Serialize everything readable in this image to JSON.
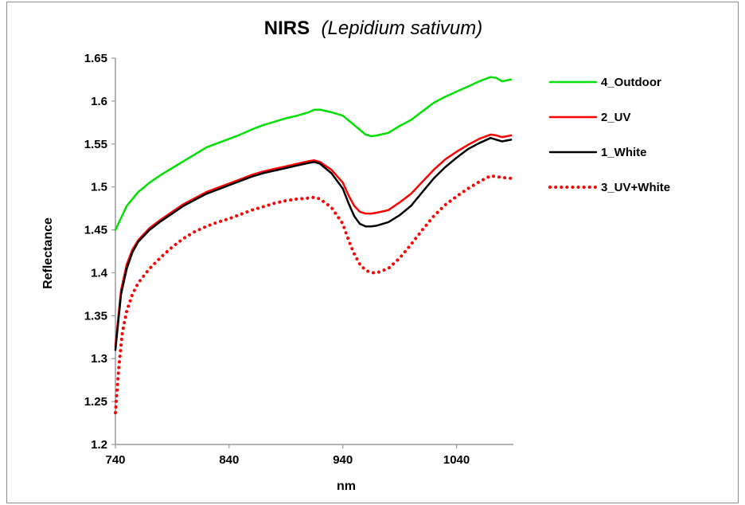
{
  "chart_data": {
    "type": "line",
    "title": "NIRS",
    "subtitle": "(Lepidium sativum)",
    "xlabel": "nm",
    "ylabel": "Reflectance",
    "xlim": [
      740,
      1090
    ],
    "ylim": [
      1.2,
      1.65
    ],
    "x_ticks": [
      740,
      840,
      940,
      1040
    ],
    "x_tick_labels": [
      "740",
      "840",
      "940",
      "1040"
    ],
    "y_ticks": [
      1.2,
      1.25,
      1.3,
      1.35,
      1.4,
      1.45,
      1.5,
      1.55,
      1.6,
      1.65
    ],
    "y_tick_labels": [
      "1.2",
      "1.25",
      "1.3",
      "1.35",
      "1.4",
      "1.45",
      "1.5",
      "1.55",
      "1.6",
      "1.65"
    ],
    "grid": false,
    "legend_position": "right",
    "series": [
      {
        "name": "4_Outdoor",
        "color": "#00e000",
        "dash": "solid",
        "x": [
          740,
          750,
          760,
          770,
          780,
          790,
          800,
          810,
          820,
          830,
          840,
          850,
          860,
          870,
          880,
          890,
          900,
          910,
          915,
          920,
          930,
          940,
          950,
          960,
          965,
          970,
          980,
          990,
          1000,
          1010,
          1020,
          1030,
          1040,
          1050,
          1060,
          1070,
          1075,
          1080,
          1088
        ],
        "y": [
          1.45,
          1.478,
          1.494,
          1.505,
          1.514,
          1.522,
          1.53,
          1.538,
          1.546,
          1.551,
          1.556,
          1.561,
          1.567,
          1.572,
          1.576,
          1.58,
          1.583,
          1.587,
          1.59,
          1.59,
          1.587,
          1.583,
          1.572,
          1.561,
          1.559,
          1.56,
          1.563,
          1.571,
          1.578,
          1.588,
          1.598,
          1.605,
          1.611,
          1.617,
          1.623,
          1.628,
          1.627,
          1.623,
          1.625
        ]
      },
      {
        "name": "2_UV",
        "color": "#ff0000",
        "dash": "solid",
        "x": [
          740,
          745,
          750,
          755,
          760,
          770,
          780,
          790,
          800,
          810,
          820,
          830,
          840,
          850,
          860,
          870,
          880,
          890,
          900,
          910,
          915,
          920,
          930,
          940,
          945,
          950,
          955,
          960,
          965,
          970,
          980,
          990,
          1000,
          1010,
          1020,
          1030,
          1040,
          1050,
          1060,
          1070,
          1075,
          1080,
          1088
        ],
        "y": [
          1.315,
          1.38,
          1.41,
          1.427,
          1.438,
          1.452,
          1.462,
          1.471,
          1.48,
          1.487,
          1.494,
          1.499,
          1.504,
          1.509,
          1.514,
          1.518,
          1.521,
          1.524,
          1.527,
          1.53,
          1.531,
          1.529,
          1.52,
          1.505,
          1.49,
          1.478,
          1.471,
          1.469,
          1.469,
          1.47,
          1.473,
          1.482,
          1.492,
          1.506,
          1.52,
          1.532,
          1.541,
          1.549,
          1.556,
          1.561,
          1.56,
          1.558,
          1.56
        ]
      },
      {
        "name": "1_White",
        "color": "#000000",
        "dash": "solid",
        "x": [
          740,
          745,
          750,
          755,
          760,
          770,
          780,
          790,
          800,
          810,
          820,
          830,
          840,
          850,
          860,
          870,
          880,
          890,
          900,
          910,
          915,
          920,
          930,
          940,
          945,
          950,
          955,
          960,
          965,
          970,
          980,
          990,
          1000,
          1010,
          1020,
          1030,
          1040,
          1050,
          1060,
          1070,
          1075,
          1080,
          1088
        ],
        "y": [
          1.31,
          1.375,
          1.405,
          1.424,
          1.436,
          1.45,
          1.46,
          1.469,
          1.478,
          1.485,
          1.492,
          1.497,
          1.502,
          1.507,
          1.512,
          1.516,
          1.519,
          1.522,
          1.525,
          1.528,
          1.529,
          1.527,
          1.516,
          1.498,
          1.481,
          1.466,
          1.457,
          1.454,
          1.454,
          1.455,
          1.459,
          1.467,
          1.478,
          1.494,
          1.51,
          1.523,
          1.534,
          1.544,
          1.551,
          1.557,
          1.555,
          1.553,
          1.555
        ]
      },
      {
        "name": "3_UV+White",
        "color": "#ff0000",
        "dash": "dotted",
        "x": [
          740,
          743,
          746,
          750,
          755,
          760,
          770,
          780,
          790,
          800,
          810,
          820,
          830,
          840,
          850,
          860,
          870,
          880,
          890,
          900,
          910,
          915,
          920,
          930,
          940,
          945,
          950,
          955,
          960,
          965,
          970,
          980,
          990,
          1000,
          1010,
          1020,
          1030,
          1040,
          1050,
          1060,
          1070,
          1080,
          1088
        ],
        "y": [
          1.237,
          1.29,
          1.33,
          1.356,
          1.375,
          1.388,
          1.405,
          1.418,
          1.43,
          1.44,
          1.448,
          1.454,
          1.459,
          1.463,
          1.468,
          1.473,
          1.477,
          1.481,
          1.484,
          1.486,
          1.487,
          1.488,
          1.486,
          1.476,
          1.457,
          1.438,
          1.422,
          1.41,
          1.403,
          1.4,
          1.4,
          1.405,
          1.417,
          1.433,
          1.45,
          1.466,
          1.479,
          1.489,
          1.498,
          1.506,
          1.513,
          1.511,
          1.51
        ]
      }
    ]
  }
}
